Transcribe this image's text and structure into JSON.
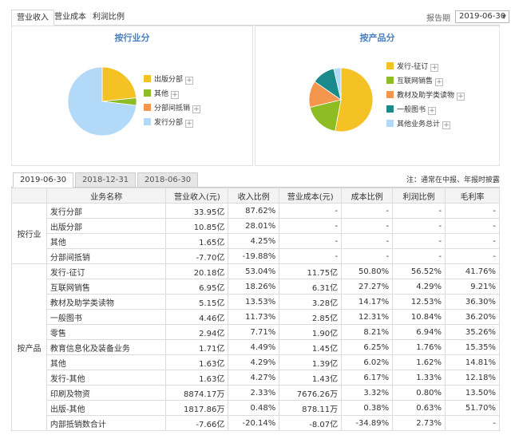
{
  "top_tabs": [
    "营业收入",
    "营业成本",
    "利润比例"
  ],
  "period": {
    "label": "报告期",
    "value": "2019-06-30"
  },
  "panel_left": {
    "title": "按行业分",
    "legend": [
      {
        "name": "出版分部",
        "color": "#f5c225"
      },
      {
        "name": "其他",
        "color": "#8dbd23"
      },
      {
        "name": "分部间抵销",
        "color": "#f5964f"
      },
      {
        "name": "发行分部",
        "color": "#b3d9f8"
      }
    ],
    "pie": [
      {
        "name": "出版分部",
        "value": 10.85,
        "color": "#f5c225"
      },
      {
        "name": "其他",
        "value": 1.65,
        "color": "#8dbd23"
      },
      {
        "name": "发行分部",
        "value": 33.95,
        "color": "#b3d9f8"
      }
    ]
  },
  "panel_right": {
    "title": "按产品分",
    "legend": [
      {
        "name": "发行-征订",
        "color": "#f5c225"
      },
      {
        "name": "互联网销售",
        "color": "#8dbd23"
      },
      {
        "name": "教材及助学类读物",
        "color": "#f5964f"
      },
      {
        "name": "一般图书",
        "color": "#1b8a8a"
      },
      {
        "name": "其他业务总计",
        "color": "#b3d9f8"
      }
    ],
    "pie": [
      {
        "name": "发行-征订",
        "value": 20.18,
        "color": "#f5c225"
      },
      {
        "name": "互联网销售",
        "value": 6.95,
        "color": "#8dbd23"
      },
      {
        "name": "教材及助学类读物",
        "value": 5.15,
        "color": "#f5964f"
      },
      {
        "name": "一般图书",
        "value": 4.46,
        "color": "#1b8a8a"
      },
      {
        "name": "其他业务总计",
        "value": 1.38,
        "color": "#b3d9f8"
      }
    ]
  },
  "date_tabs": [
    "2019-06-30",
    "2018-12-31",
    "2018-06-30"
  ],
  "note": "注：通常在中报、年报时披露",
  "table": {
    "headers": [
      "业务名称",
      "营业收入(元)",
      "收入比例",
      "营业成本(元)",
      "成本比例",
      "利润比例",
      "毛利率"
    ],
    "groups": [
      {
        "segment": "按行业",
        "rows": [
          [
            "发行分部",
            "33.95亿",
            "87.62%",
            "-",
            "-",
            "-",
            "-"
          ],
          [
            "出版分部",
            "10.85亿",
            "28.01%",
            "-",
            "-",
            "-",
            "-"
          ],
          [
            "其他",
            "1.65亿",
            "4.25%",
            "-",
            "-",
            "-",
            "-"
          ],
          [
            "分部间抵销",
            "-7.70亿",
            "-19.88%",
            "-",
            "-",
            "-",
            "-"
          ]
        ]
      },
      {
        "segment": "按产品",
        "rows": [
          [
            "发行-征订",
            "20.18亿",
            "53.04%",
            "11.75亿",
            "50.80%",
            "56.52%",
            "41.76%"
          ],
          [
            "互联网销售",
            "6.95亿",
            "18.26%",
            "6.31亿",
            "27.27%",
            "4.29%",
            "9.21%"
          ],
          [
            "教材及助学类读物",
            "5.15亿",
            "13.53%",
            "3.28亿",
            "14.17%",
            "12.53%",
            "36.30%"
          ],
          [
            "一般图书",
            "4.46亿",
            "11.73%",
            "2.85亿",
            "12.31%",
            "10.84%",
            "36.20%"
          ],
          [
            "零售",
            "2.94亿",
            "7.71%",
            "1.90亿",
            "8.21%",
            "6.94%",
            "35.26%"
          ],
          [
            "教育信息化及装备业务",
            "1.71亿",
            "4.49%",
            "1.45亿",
            "6.25%",
            "1.76%",
            "15.35%"
          ],
          [
            "其他",
            "1.63亿",
            "4.29%",
            "1.39亿",
            "6.02%",
            "1.62%",
            "14.81%"
          ],
          [
            "发行-其他",
            "1.63亿",
            "4.27%",
            "1.43亿",
            "6.17%",
            "1.33%",
            "12.18%"
          ],
          [
            "印刷及物资",
            "8874.17万",
            "2.33%",
            "7676.26万",
            "3.32%",
            "0.80%",
            "13.50%"
          ],
          [
            "出版-其他",
            "1817.86万",
            "0.48%",
            "878.11万",
            "0.38%",
            "0.63%",
            "51.70%"
          ],
          [
            "内部抵销数合计",
            "-7.66亿",
            "-20.14%",
            "-8.07亿",
            "-34.89%",
            "2.73%",
            "-"
          ]
        ]
      }
    ]
  }
}
